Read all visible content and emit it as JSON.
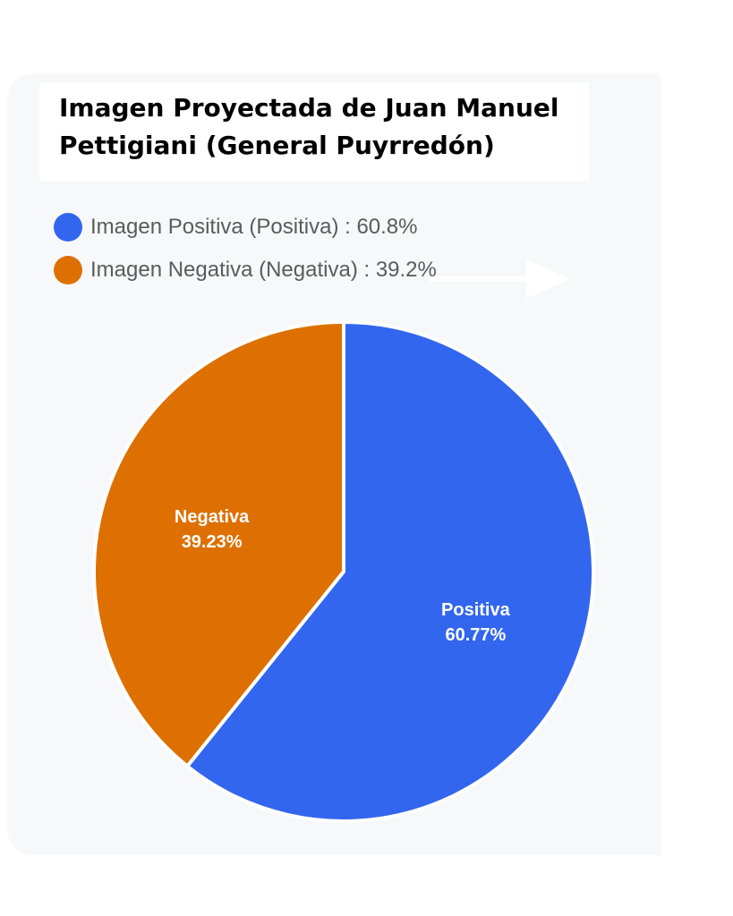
{
  "chart_data": {
    "type": "pie",
    "title": "Imagen Proyectada de Juan Manuel Pettigiani (General Puyrredón)",
    "legend": [
      {
        "label": "Imagen Positiva (Positiva) : 60.8%",
        "color": "#3366ee"
      },
      {
        "label": "Imagen Negativa (Negativa) : 39.2%",
        "color": "#dd7000"
      }
    ],
    "slices": [
      {
        "name": "Positiva",
        "value": 60.77,
        "label": "Positiva",
        "percent_label": "60.77%",
        "color": "#3366ee"
      },
      {
        "name": "Negativa",
        "value": 39.23,
        "label": "Negativa",
        "percent_label": "39.23%",
        "color": "#dd7000"
      }
    ],
    "legend_position": "top-left"
  }
}
